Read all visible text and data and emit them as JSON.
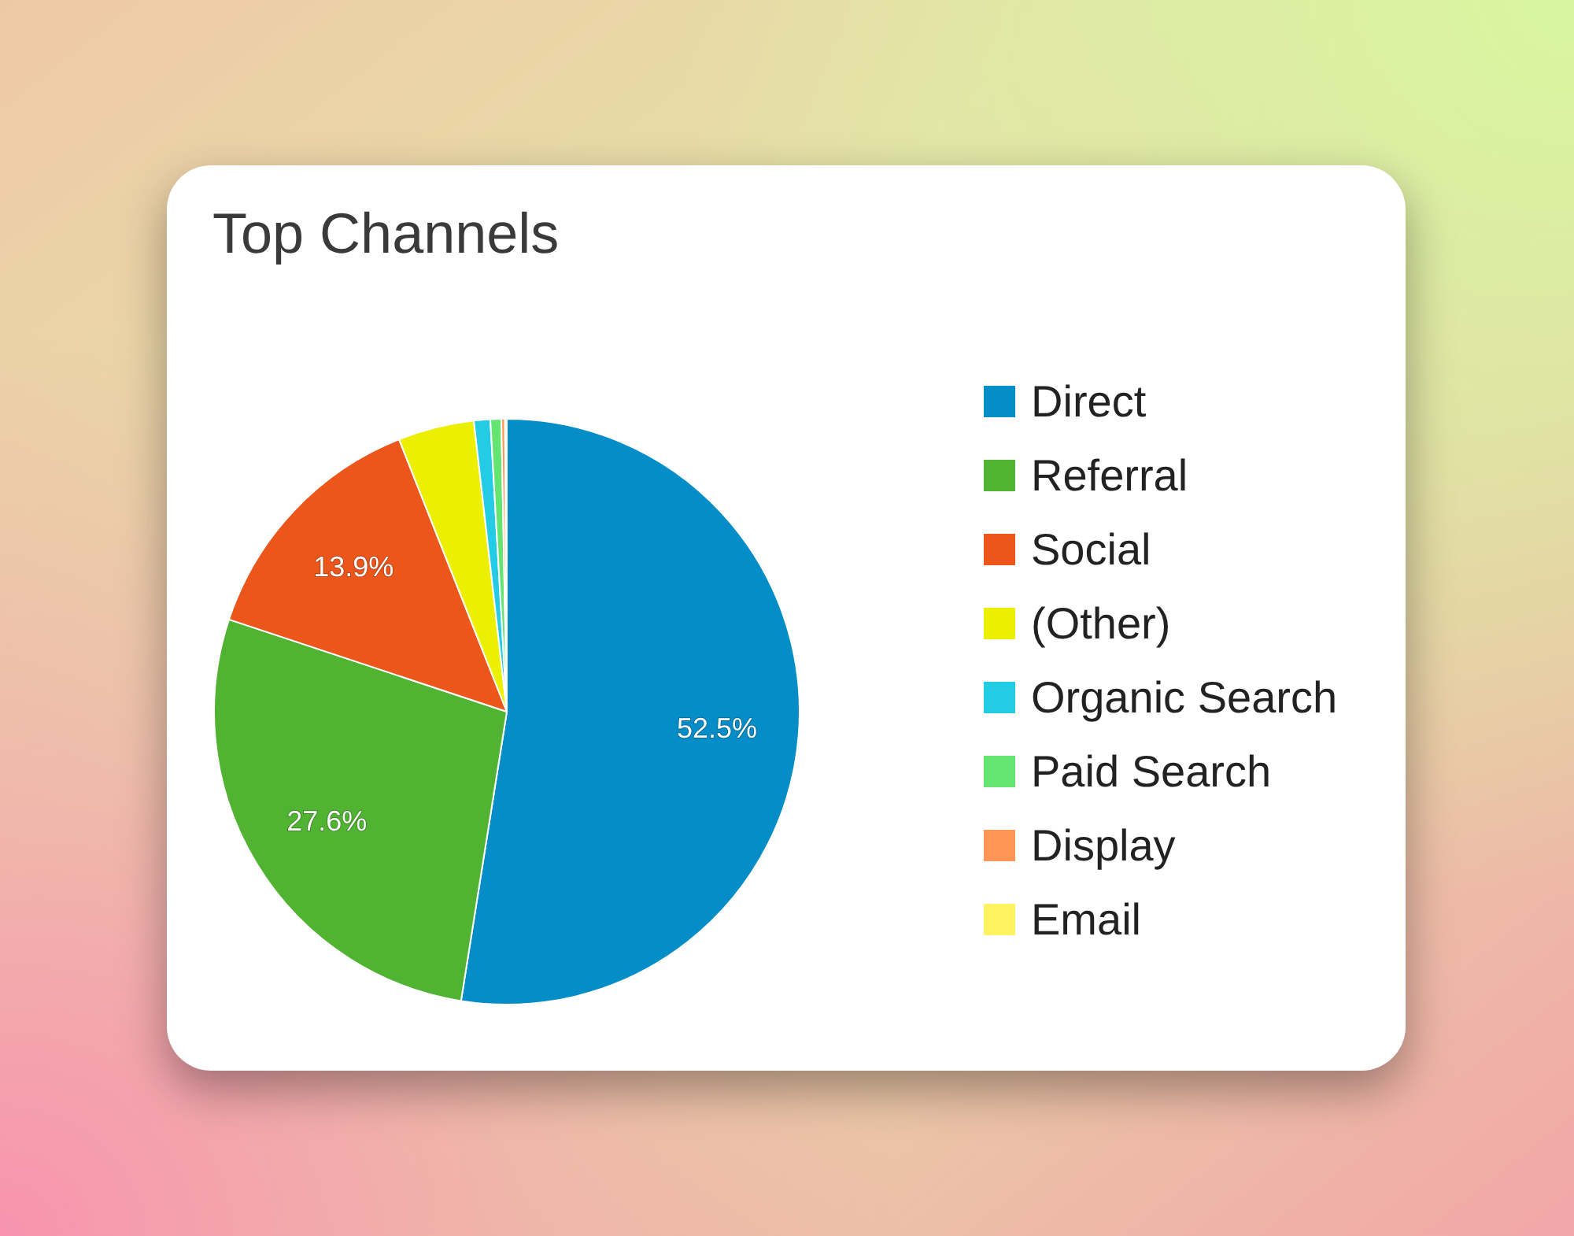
{
  "chart_data": {
    "type": "pie",
    "title": "Top Channels",
    "categories": [
      "Direct",
      "Referral",
      "Social",
      "(Other)",
      "Organic Search",
      "Paid Search",
      "Display",
      "Email"
    ],
    "values": [
      52.5,
      27.6,
      13.9,
      4.2,
      0.9,
      0.6,
      0.2,
      0.1
    ],
    "colors": [
      "#058dc7",
      "#50b432",
      "#ed561b",
      "#edef00",
      "#24cbe5",
      "#64e572",
      "#ff9655",
      "#fff263"
    ],
    "value_labels": [
      "52.5%",
      "27.6%",
      "13.9%",
      null,
      null,
      null,
      null,
      null
    ],
    "legend": "right"
  }
}
